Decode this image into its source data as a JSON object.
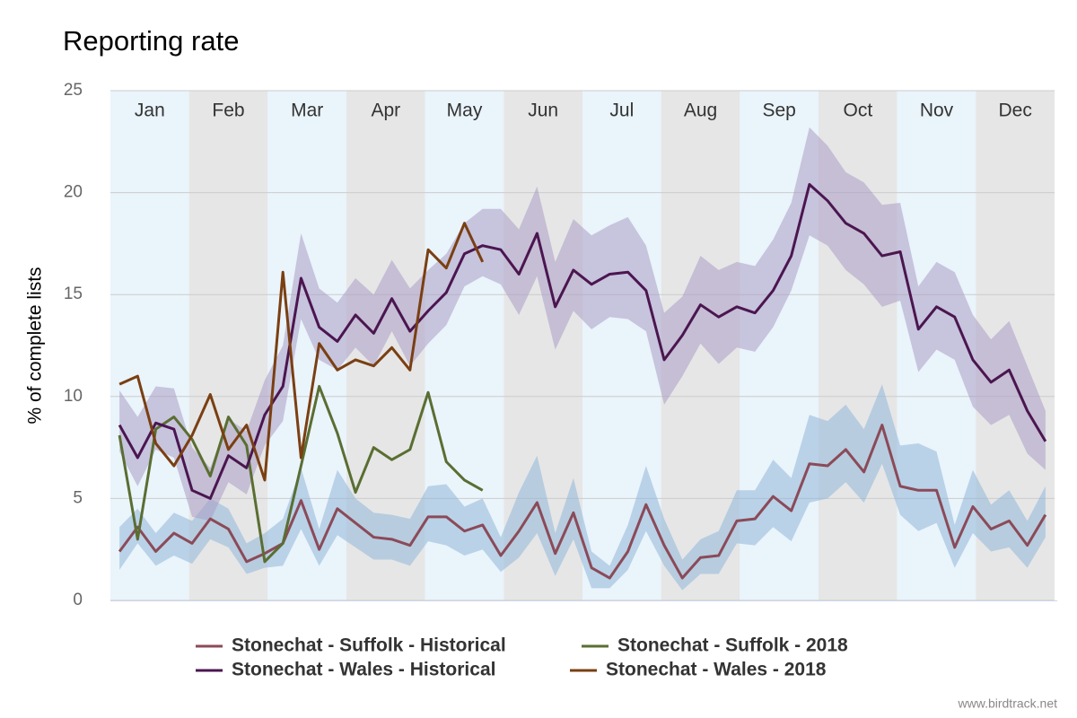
{
  "chart_data": {
    "type": "line",
    "title": "Reporting rate",
    "y_label": "% of complete lists",
    "source": "www.birdtrack.net",
    "months": [
      "Jan",
      "Feb",
      "Mar",
      "Apr",
      "May",
      "Jun",
      "Jul",
      "Aug",
      "Sep",
      "Oct",
      "Nov",
      "Dec"
    ],
    "x": [
      1,
      2,
      3,
      4,
      5,
      6,
      7,
      8,
      9,
      10,
      11,
      12,
      13,
      14,
      15,
      16,
      17,
      18,
      19,
      20,
      21,
      22,
      23,
      24,
      25,
      26,
      27,
      28,
      29,
      30,
      31,
      32,
      33,
      34,
      35,
      36,
      37,
      38,
      39,
      40,
      41,
      42,
      43,
      44,
      45,
      46,
      47,
      48,
      49,
      50,
      51,
      52
    ],
    "xlim": [
      0.5,
      52.5
    ],
    "ylim": [
      0,
      25
    ],
    "yticks": [
      0,
      5,
      10,
      15,
      20,
      25
    ],
    "grid": true,
    "series": [
      {
        "name": "Stonechat - Suffolk - Historical",
        "color": "#8b4a58",
        "band_color": "#8fb6d9",
        "values": [
          2.4,
          3.6,
          2.4,
          3.3,
          2.8,
          4.0,
          3.5,
          1.9,
          2.3,
          2.8,
          4.9,
          2.5,
          4.5,
          3.8,
          3.1,
          3.0,
          2.7,
          4.1,
          4.1,
          3.4,
          3.7,
          2.2,
          3.4,
          4.8,
          2.3,
          4.3,
          1.6,
          1.1,
          2.4,
          4.7,
          2.7,
          1.1,
          2.1,
          2.2,
          3.9,
          4.0,
          5.1,
          4.4,
          6.7,
          6.6,
          7.4,
          6.3,
          8.6,
          5.6,
          5.4,
          5.4,
          2.6,
          4.6,
          3.5,
          3.9,
          2.7,
          4.2
        ],
        "upper": [
          3.6,
          4.5,
          3.3,
          4.3,
          3.9,
          5.0,
          4.5,
          2.8,
          3.3,
          4.0,
          6.5,
          3.5,
          6.4,
          5.0,
          4.3,
          4.2,
          4.0,
          5.6,
          5.7,
          4.6,
          5.0,
          3.1,
          5.3,
          7.1,
          3.3,
          6.0,
          2.4,
          1.7,
          3.7,
          6.6,
          4.0,
          2.0,
          3.0,
          3.4,
          5.4,
          5.4,
          6.9,
          6.0,
          9.1,
          8.8,
          9.6,
          8.4,
          10.6,
          7.6,
          7.7,
          7.3,
          3.7,
          6.4,
          4.7,
          5.4,
          3.9,
          5.6
        ],
        "lower": [
          1.5,
          2.8,
          1.7,
          2.2,
          1.8,
          3.0,
          2.6,
          1.3,
          1.6,
          1.7,
          3.5,
          1.7,
          3.2,
          2.6,
          2.0,
          2.0,
          1.7,
          2.9,
          2.7,
          2.2,
          2.5,
          1.4,
          2.1,
          3.3,
          1.2,
          3.0,
          0.6,
          0.6,
          1.5,
          3.4,
          1.7,
          0.5,
          1.3,
          1.3,
          2.8,
          2.7,
          3.6,
          2.9,
          4.8,
          5.0,
          5.8,
          4.8,
          6.7,
          4.2,
          3.4,
          3.8,
          1.6,
          3.3,
          2.4,
          2.6,
          1.6,
          3.1
        ]
      },
      {
        "name": "Stonechat - Suffolk - 2018",
        "color": "#5a6e32",
        "values": [
          8.1,
          3.0,
          8.4,
          9.0,
          7.9,
          6.1,
          9.0,
          7.6,
          1.9,
          2.8,
          6.6,
          10.5,
          8.2,
          5.3,
          7.5,
          6.9,
          7.4,
          10.2,
          6.8,
          5.9,
          5.4,
          null,
          null,
          null,
          null,
          null,
          null,
          null,
          null,
          null,
          null,
          null,
          null,
          null,
          null,
          null,
          null,
          null,
          null,
          null,
          null,
          null,
          null,
          null,
          null,
          null,
          null,
          null,
          null,
          null,
          null,
          null
        ]
      },
      {
        "name": "Stonechat - Wales - Historical",
        "color": "#4b1650",
        "band_color": "#a99cc4",
        "values": [
          8.6,
          7.0,
          8.7,
          8.4,
          5.4,
          5.0,
          7.1,
          6.5,
          9.1,
          10.5,
          15.8,
          13.4,
          12.7,
          14.0,
          13.1,
          14.8,
          13.2,
          14.2,
          15.1,
          17.0,
          17.4,
          17.2,
          16.0,
          18.0,
          14.4,
          16.2,
          15.5,
          16.0,
          16.1,
          15.2,
          11.8,
          13.0,
          14.5,
          13.9,
          14.4,
          14.1,
          15.2,
          16.9,
          20.4,
          19.6,
          18.5,
          18.0,
          16.9,
          17.1,
          13.3,
          14.4,
          13.9,
          11.8,
          10.7,
          11.3,
          9.3,
          7.8
        ],
        "upper": [
          10.3,
          9.0,
          10.5,
          10.4,
          7.5,
          6.5,
          8.9,
          8.3,
          10.8,
          12.5,
          18.0,
          15.3,
          14.6,
          15.8,
          15.0,
          16.7,
          15.3,
          16.2,
          17.0,
          18.5,
          19.2,
          19.2,
          18.2,
          20.3,
          16.6,
          18.7,
          17.9,
          18.4,
          18.8,
          17.4,
          14.1,
          14.9,
          16.9,
          16.2,
          16.6,
          16.4,
          17.7,
          19.5,
          23.2,
          22.3,
          21.0,
          20.5,
          19.4,
          19.5,
          15.4,
          16.6,
          16.1,
          14.0,
          12.8,
          13.7,
          11.5,
          9.3
        ],
        "lower": [
          7.3,
          5.6,
          7.4,
          7.0,
          4.1,
          3.9,
          5.8,
          5.2,
          7.6,
          8.8,
          13.8,
          11.8,
          11.3,
          12.4,
          11.5,
          13.2,
          11.5,
          12.6,
          13.5,
          15.4,
          15.9,
          15.5,
          14.0,
          15.9,
          12.3,
          14.2,
          13.3,
          13.9,
          13.8,
          13.2,
          9.6,
          11.0,
          12.6,
          11.6,
          12.4,
          12.2,
          13.4,
          15.2,
          17.9,
          17.4,
          16.2,
          15.5,
          14.4,
          14.7,
          11.2,
          12.3,
          11.8,
          9.5,
          8.6,
          9.1,
          7.2,
          6.4
        ]
      },
      {
        "name": "Stonechat - Wales - 2018",
        "color": "#7a3f12",
        "values": [
          10.6,
          11.0,
          7.7,
          6.6,
          8.1,
          10.1,
          7.4,
          8.6,
          5.9,
          16.1,
          7.0,
          12.6,
          11.3,
          11.8,
          11.5,
          12.4,
          11.3,
          17.2,
          16.3,
          18.5,
          16.6,
          null,
          null,
          null,
          null,
          null,
          null,
          null,
          null,
          null,
          null,
          null,
          null,
          null,
          null,
          null,
          null,
          null,
          null,
          null,
          null,
          null,
          null,
          null,
          null,
          null,
          null,
          null,
          null,
          null,
          null,
          null
        ]
      }
    ]
  }
}
